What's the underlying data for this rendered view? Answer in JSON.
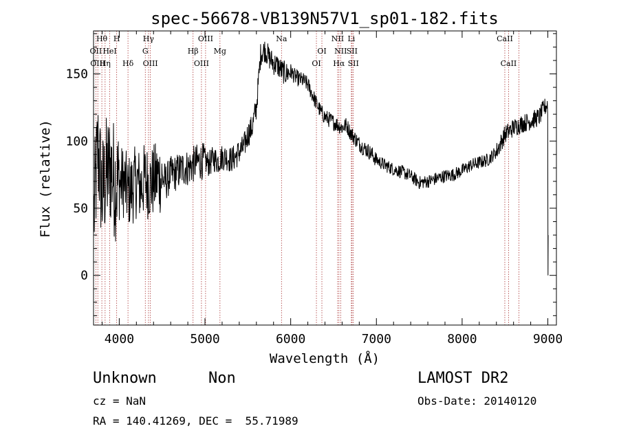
{
  "chart_data": {
    "type": "line",
    "title": "spec-56678-VB139N57V1_sp01-182.fits",
    "xlabel": "Wavelength (Å)",
    "ylabel": "Flux (relative)",
    "xlim": [
      3700,
      9100
    ],
    "ylim": [
      -37,
      182
    ],
    "xticks": [
      4000,
      5000,
      6000,
      7000,
      8000,
      9000
    ],
    "yticks": [
      0,
      50,
      100,
      150
    ],
    "grid": false,
    "series": [
      {
        "x": [
          3700,
          3750,
          3800,
          3850,
          3900,
          3950,
          4000,
          4050,
          4100,
          4150,
          4200,
          4250,
          4300,
          4350,
          4400,
          4450,
          4500,
          4550,
          4600,
          4650,
          4700,
          4750,
          4800,
          4850,
          4900,
          4950,
          5000,
          5050,
          5100,
          5150,
          5200,
          5250,
          5300,
          5350,
          5400,
          5450,
          5500,
          5550,
          5600,
          5650,
          5700,
          5750,
          5800,
          5850,
          5900,
          5950,
          6000,
          6050,
          6100,
          6150,
          6200,
          6250,
          6300,
          6350,
          6400,
          6450,
          6500,
          6550,
          6600,
          6650,
          6700,
          6750,
          6800,
          6850,
          6900,
          6950,
          7000,
          7100,
          7200,
          7300,
          7400,
          7500,
          7600,
          7700,
          7800,
          7900,
          8000,
          8100,
          8200,
          8300,
          8400,
          8500,
          8600,
          8700,
          8800,
          8900,
          8950,
          9000
        ],
        "values": [
          40,
          95,
          60,
          75,
          80,
          70,
          68,
          70,
          62,
          65,
          70,
          66,
          72,
          68,
          70,
          74,
          72,
          70,
          75,
          76,
          78,
          80,
          80,
          82,
          84,
          85,
          85,
          83,
          87,
          85,
          88,
          88,
          86,
          88,
          92,
          95,
          105,
          110,
          125,
          165,
          168,
          162,
          158,
          156,
          152,
          150,
          152,
          148,
          146,
          145,
          142,
          135,
          128,
          122,
          118,
          116,
          114,
          112,
          110,
          112,
          106,
          102,
          98,
          95,
          93,
          90,
          86,
          82,
          79,
          77,
          74,
          69,
          70,
          72,
          74,
          75,
          78,
          82,
          84,
          86,
          92,
          105,
          110,
          113,
          115,
          118,
          124,
          128
        ]
      }
    ],
    "line_markers": [
      {
        "label": "Hθ",
        "wave": 3797,
        "row": 0
      },
      {
        "label": "H",
        "wave": 3970,
        "row": 0
      },
      {
        "label": "Hγ",
        "wave": 4341,
        "row": 0
      },
      {
        "label": "OIII",
        "wave": 5007,
        "row": 0
      },
      {
        "label": "Na",
        "wave": 5893,
        "row": 0
      },
      {
        "label": "NII",
        "wave": 6548,
        "row": 0
      },
      {
        "label": "Li",
        "wave": 6708,
        "row": 0
      },
      {
        "label": "CaII",
        "wave": 8498,
        "row": 0
      },
      {
        "label": "OII",
        "wave": 3727,
        "row": 1
      },
      {
        "label": "HeI",
        "wave": 3889,
        "row": 1
      },
      {
        "label": "G",
        "wave": 4304,
        "row": 1
      },
      {
        "label": "Hβ",
        "wave": 4861,
        "row": 1
      },
      {
        "label": "Mg",
        "wave": 5175,
        "row": 1
      },
      {
        "label": "OI",
        "wave": 6364,
        "row": 1
      },
      {
        "label": "NII",
        "wave": 6583,
        "row": 1
      },
      {
        "label": "SII",
        "wave": 6716,
        "row": 1
      },
      {
        "label": "OIII",
        "wave": 3750,
        "row": 2
      },
      {
        "label": "Hη",
        "wave": 3835,
        "row": 2
      },
      {
        "label": "Hδ",
        "wave": 4102,
        "row": 2
      },
      {
        "label": "OIII",
        "wave": 4363,
        "row": 2
      },
      {
        "label": "OIII",
        "wave": 4959,
        "row": 2
      },
      {
        "label": "OI",
        "wave": 6300,
        "row": 2
      },
      {
        "label": "Hα",
        "wave": 6563,
        "row": 2
      },
      {
        "label": "SII",
        "wave": 6731,
        "row": 2
      },
      {
        "label": "CaII",
        "wave": 8542,
        "row": 2
      }
    ],
    "extra_lines": [
      8662
    ]
  },
  "info": {
    "classification": "Unknown",
    "subclass": "Non",
    "cz": "cz = NaN",
    "radec": "RA = 140.41269, DEC =  55.71989",
    "survey": "LAMOST DR2",
    "obsdate": "Obs-Date: 20140120"
  }
}
